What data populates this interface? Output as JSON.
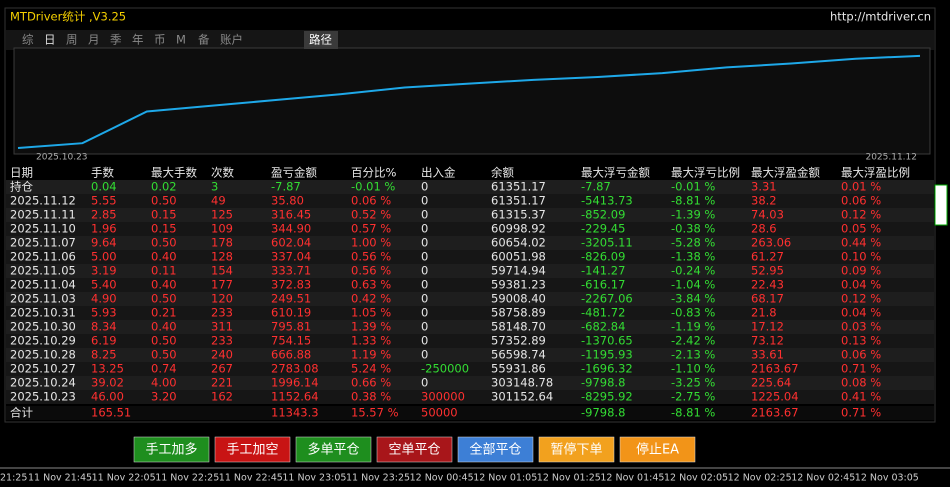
{
  "header": {
    "title": "MTDriver统计 ,V3.25",
    "url": "http://mtdriver.cn"
  },
  "tabs": [
    "综",
    "日",
    "周",
    "月",
    "季",
    "年",
    "币",
    "M",
    "备",
    "账户"
  ],
  "active_tab": "路径",
  "chart_data": {
    "type": "line",
    "x": [
      "2025.10.23",
      "2025.10.24",
      "2025.10.27",
      "2025.10.28",
      "2025.10.29",
      "2025.10.30",
      "2025.10.31",
      "2025.11.03",
      "2025.11.04",
      "2025.11.05",
      "2025.11.06",
      "2025.11.07",
      "2025.11.10",
      "2025.11.11",
      "2025.11.12"
    ],
    "values": [
      0,
      5,
      38,
      44,
      50,
      56,
      63,
      67,
      71,
      74,
      78,
      84,
      88,
      93,
      96
    ],
    "ylim": [
      0,
      100
    ],
    "color": "#1ea8e8",
    "start_label": "2025.10.23",
    "end_label": "2025.11.12"
  },
  "table": {
    "columns": [
      "日期",
      "手数",
      "最大手数",
      "次数",
      "盈亏金额",
      "百分比%",
      "出入金",
      "余额",
      "最大浮亏金额",
      "最大浮亏比例",
      "最大浮盈金额",
      "最大浮盈比例"
    ],
    "rows": [
      [
        "持仓",
        "0.04",
        "0.02",
        "3",
        "-7.87",
        "-0.01 %",
        "0",
        "61351.17",
        "-7.87",
        "-0.01 %",
        "3.31",
        "0.01 %"
      ],
      [
        "2025.11.12",
        "5.55",
        "0.50",
        "49",
        "35.80",
        "0.06 %",
        "0",
        "61351.17",
        "-5413.73",
        "-8.81 %",
        "38.2",
        "0.06 %"
      ],
      [
        "2025.11.11",
        "2.85",
        "0.15",
        "125",
        "316.45",
        "0.52 %",
        "0",
        "61315.37",
        "-852.09",
        "-1.39 %",
        "74.03",
        "0.12 %"
      ],
      [
        "2025.11.10",
        "1.96",
        "0.15",
        "109",
        "344.90",
        "0.57 %",
        "0",
        "60998.92",
        "-229.45",
        "-0.38 %",
        "28.6",
        "0.05 %"
      ],
      [
        "2025.11.07",
        "9.64",
        "0.50",
        "178",
        "602.04",
        "1.00 %",
        "0",
        "60654.02",
        "-3205.11",
        "-5.28 %",
        "263.06",
        "0.44 %"
      ],
      [
        "2025.11.06",
        "5.00",
        "0.40",
        "128",
        "337.04",
        "0.56 %",
        "0",
        "60051.98",
        "-826.09",
        "-1.38 %",
        "61.27",
        "0.10 %"
      ],
      [
        "2025.11.05",
        "3.19",
        "0.11",
        "154",
        "333.71",
        "0.56 %",
        "0",
        "59714.94",
        "-141.27",
        "-0.24 %",
        "52.95",
        "0.09 %"
      ],
      [
        "2025.11.04",
        "5.40",
        "0.40",
        "177",
        "372.83",
        "0.63 %",
        "0",
        "59381.23",
        "-616.17",
        "-1.04 %",
        "22.43",
        "0.04 %"
      ],
      [
        "2025.11.03",
        "4.90",
        "0.50",
        "120",
        "249.51",
        "0.42 %",
        "0",
        "59008.40",
        "-2267.06",
        "-3.84 %",
        "68.17",
        "0.12 %"
      ],
      [
        "2025.10.31",
        "5.93",
        "0.21",
        "233",
        "610.19",
        "1.05 %",
        "0",
        "58758.89",
        "-481.72",
        "-0.83 %",
        "21.8",
        "0.04 %"
      ],
      [
        "2025.10.30",
        "8.34",
        "0.40",
        "311",
        "795.81",
        "1.39 %",
        "0",
        "58148.70",
        "-682.84",
        "-1.19 %",
        "17.12",
        "0.03 %"
      ],
      [
        "2025.10.29",
        "6.19",
        "0.50",
        "233",
        "754.15",
        "1.33 %",
        "0",
        "57352.89",
        "-1370.65",
        "-2.42 %",
        "73.12",
        "0.13 %"
      ],
      [
        "2025.10.28",
        "8.25",
        "0.50",
        "240",
        "666.88",
        "1.19 %",
        "0",
        "56598.74",
        "-1195.93",
        "-2.13 %",
        "33.61",
        "0.06 %"
      ],
      [
        "2025.10.27",
        "13.25",
        "0.74",
        "267",
        "2783.08",
        "5.24 %",
        "-250000",
        "55931.86",
        "-1696.32",
        "-1.10 %",
        "2163.67",
        "0.71 %"
      ],
      [
        "2025.10.24",
        "39.02",
        "4.00",
        "221",
        "1996.14",
        "0.66 %",
        "0",
        "303148.78",
        "-9798.8",
        "-3.25 %",
        "225.64",
        "0.08 %"
      ],
      [
        "2025.10.23",
        "46.00",
        "3.20",
        "162",
        "1152.64",
        "0.38 %",
        "300000",
        "301152.64",
        "-8295.92",
        "-2.75 %",
        "1225.04",
        "0.41 %"
      ]
    ],
    "total": [
      "合计",
      "165.51",
      null,
      null,
      "11343.3",
      "15.57 %",
      "50000",
      null,
      "-9798.8",
      "-8.81 %",
      "2163.67",
      "0.71 %"
    ]
  },
  "buttons": [
    {
      "label": "手工加多",
      "color": "#1e8e1e"
    },
    {
      "label": "手工加空",
      "color": "#c81414"
    },
    {
      "label": "多单平仓",
      "color": "#1e8e1e"
    },
    {
      "label": "空单平仓",
      "color": "#a8161a"
    },
    {
      "label": "全部平仓",
      "color": "#3d7fd6"
    },
    {
      "label": "暂停下单",
      "color": "#f2a11e"
    },
    {
      "label": "停止EA",
      "color": "#f29418"
    }
  ],
  "time_axis": [
    "21:25",
    "11 Nov 21:45",
    "11 Nov 22:05",
    "11 Nov 22:25",
    "11 Nov 22:45",
    "11 Nov 23:05",
    "11 Nov 23:25",
    "12 Nov 00:45",
    "12 Nov 01:05",
    "12 Nov 01:25",
    "12 Nov 01:45",
    "12 Nov 02:05",
    "12 Nov 02:25",
    "12 Nov 02:45",
    "12 Nov 03:05"
  ]
}
